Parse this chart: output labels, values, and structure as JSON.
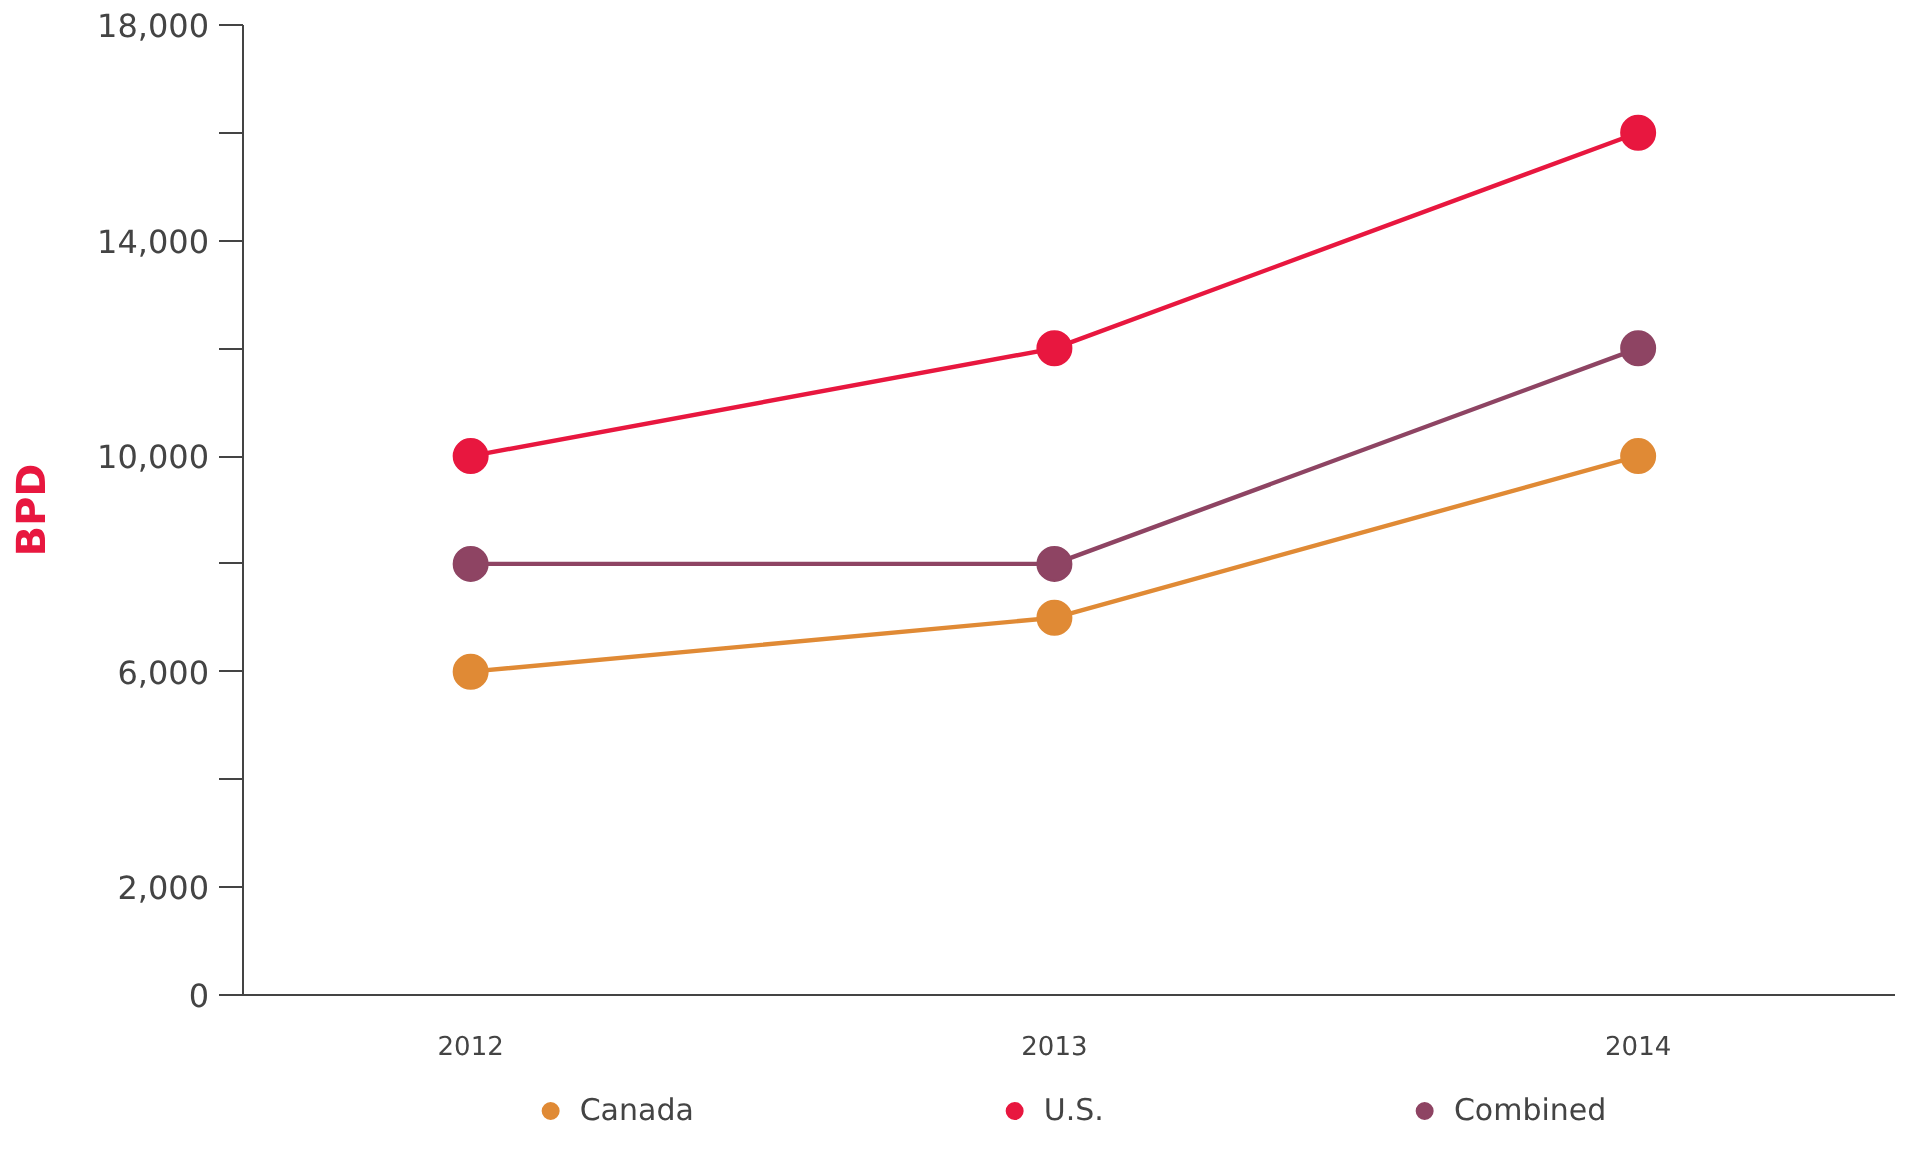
{
  "chart_data": {
    "type": "line",
    "ylabel": "BPD",
    "categories": [
      "2012",
      "2013",
      "2014"
    ],
    "series": [
      {
        "name": "Canada",
        "color": "#e08a35",
        "values": [
          6000,
          7000,
          10000
        ]
      },
      {
        "name": "U.S.",
        "color": "#e8173f",
        "values": [
          10000,
          12000,
          16000
        ]
      },
      {
        "name": "Combined",
        "color": "#8e4463",
        "values": [
          8000,
          8000,
          12000
        ]
      }
    ],
    "ylim": [
      0,
      18000
    ],
    "yticks": [
      {
        "value": 0,
        "label": "0"
      },
      {
        "value": 2000,
        "label": "2,000"
      },
      {
        "value": 4000,
        "label": null
      },
      {
        "value": 6000,
        "label": "6,000"
      },
      {
        "value": 8000,
        "label": null
      },
      {
        "value": 10000,
        "label": "10,000"
      },
      {
        "value": 12000,
        "label": null
      },
      {
        "value": 14000,
        "label": "14,000"
      },
      {
        "value": 16000,
        "label": null
      },
      {
        "value": 18000,
        "label": "18,000"
      }
    ],
    "grid": false,
    "legend": "bottom",
    "marker": "circle",
    "line_style": "solid"
  }
}
